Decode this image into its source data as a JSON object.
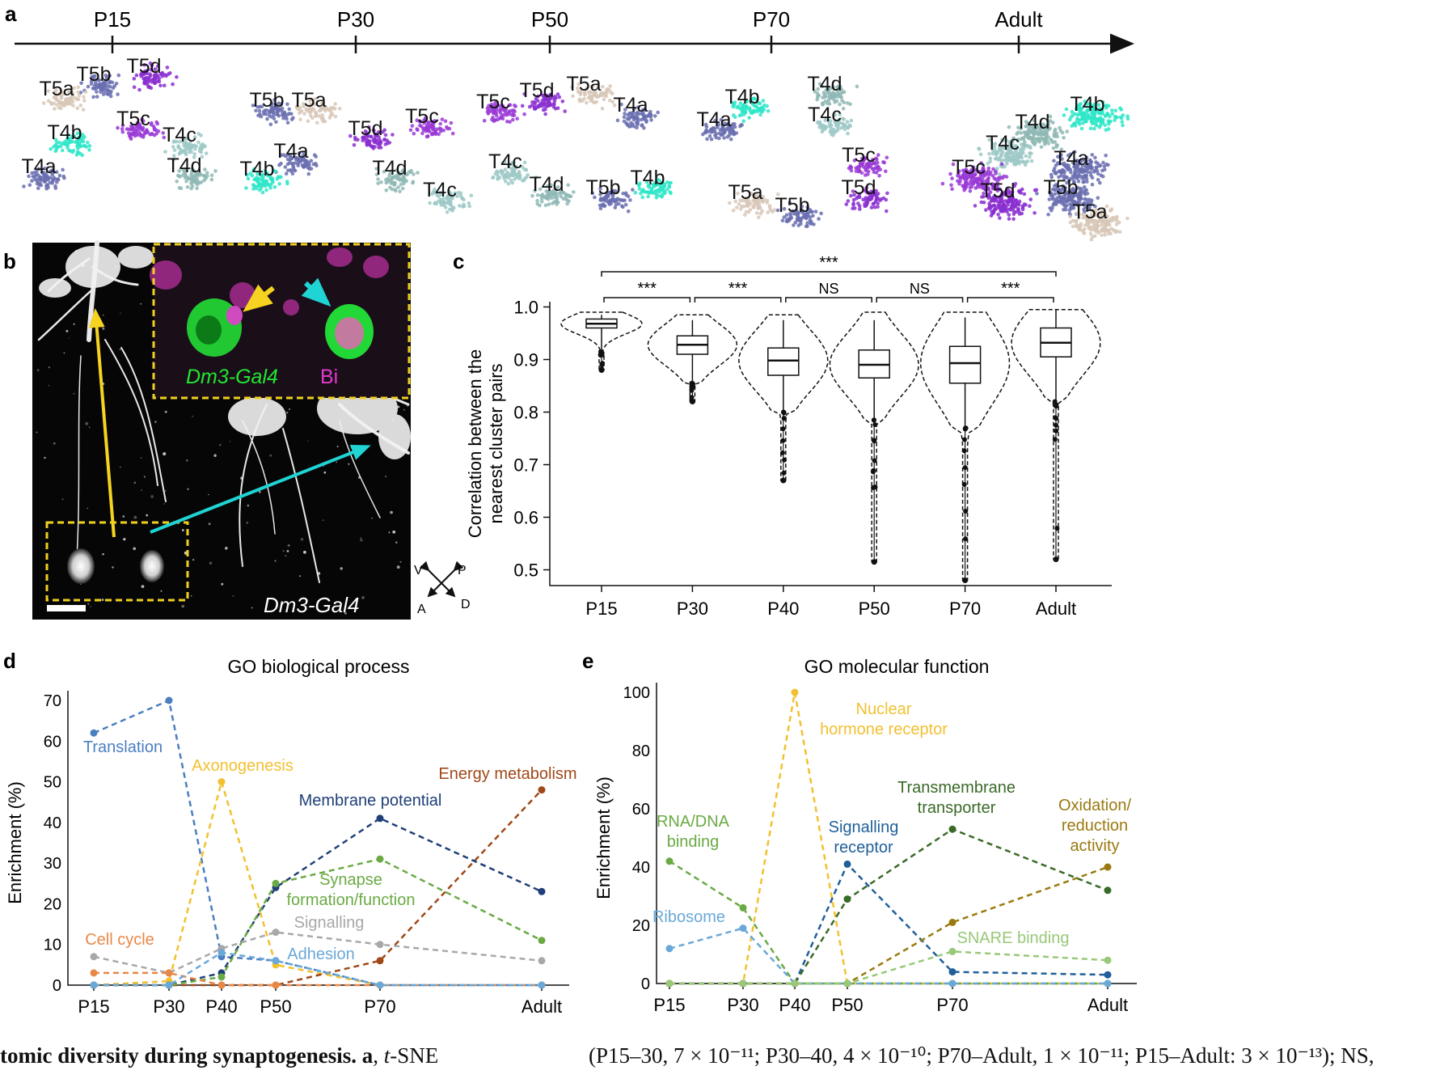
{
  "panel_labels": {
    "a": "a",
    "b": "b",
    "c": "c",
    "d": "d",
    "e": "e"
  },
  "timeline": {
    "labels": [
      "P15",
      "P30",
      "P50",
      "P70",
      "Adult"
    ]
  },
  "tsne_clusters": [
    {
      "stage": "P15",
      "labels": [
        "T5b",
        "T5d",
        "T5a",
        "T5c",
        "T4b",
        "T4c",
        "T4d",
        "T4a"
      ]
    },
    {
      "stage": "P30",
      "labels": [
        "T5b",
        "T5a",
        "T5d",
        "T5c",
        "T4a",
        "T4b",
        "T4d",
        "T4c"
      ]
    },
    {
      "stage": "P50",
      "labels": [
        "T5c",
        "T5d",
        "T5a",
        "T4a",
        "T4c",
        "T4d",
        "T5b",
        "T4b"
      ]
    },
    {
      "stage": "P70",
      "labels": [
        "T4b",
        "T4d",
        "T4a",
        "T4c",
        "T5c",
        "T5a",
        "T5d",
        "T5b"
      ]
    },
    {
      "stage": "Adult",
      "labels": [
        "T4b",
        "T4d",
        "T4c",
        "T4a",
        "T5c",
        "T5d",
        "T5b",
        "T5a"
      ]
    }
  ],
  "colors": {
    "T4a": "#6a6fb0",
    "T4b": "#2ee6c8",
    "T4c": "#9ec9c7",
    "T4d": "#8fb8b5",
    "T5a": "#d8c8b8",
    "T5b": "#6a6fb0",
    "T5c": "#9a3ad6",
    "T5d": "#8a2ed0",
    "gfp": "#22e632",
    "bi": "#e03ad0",
    "yellow_arrow": "#f5d320",
    "cyan_arrow": "#20d4d4",
    "box_border": "#f0d020"
  },
  "micrograph": {
    "inset_label_green": "Dm3-Gal4",
    "inset_label_magenta": "Bi",
    "main_label": "Dm3-Gal4",
    "compass": {
      "v": "V",
      "p": "P",
      "a": "A",
      "d": "D"
    }
  },
  "chart_data": [
    {
      "panel": "c",
      "type": "violin",
      "ylabel": "Correlation between the nearest cluster pairs",
      "categories": [
        "P15",
        "P30",
        "P40",
        "P50",
        "P70",
        "Adult"
      ],
      "ylim": [
        0.47,
        1.01
      ],
      "yticks": [
        "1.0",
        "0.9",
        "0.8",
        "0.7",
        "0.6",
        "0.5"
      ],
      "boxes": [
        {
          "name": "P15",
          "q1": 0.96,
          "median": 0.968,
          "q3": 0.977,
          "wlow": 0.915,
          "whigh": 0.985,
          "min": 0.88,
          "max": 0.99
        },
        {
          "name": "P30",
          "q1": 0.91,
          "median": 0.928,
          "q3": 0.945,
          "wlow": 0.855,
          "whigh": 0.975,
          "min": 0.82,
          "max": 0.985
        },
        {
          "name": "P40",
          "q1": 0.87,
          "median": 0.898,
          "q3": 0.922,
          "wlow": 0.8,
          "whigh": 0.975,
          "min": 0.67,
          "max": 0.985
        },
        {
          "name": "P50",
          "q1": 0.865,
          "median": 0.89,
          "q3": 0.918,
          "wlow": 0.785,
          "whigh": 0.975,
          "min": 0.515,
          "max": 0.99
        },
        {
          "name": "P70",
          "q1": 0.855,
          "median": 0.893,
          "q3": 0.925,
          "wlow": 0.77,
          "whigh": 0.98,
          "min": 0.48,
          "max": 0.99
        },
        {
          "name": "Adult",
          "q1": 0.905,
          "median": 0.932,
          "q3": 0.96,
          "wlow": 0.82,
          "whigh": 0.995,
          "min": 0.52,
          "max": 0.995
        }
      ],
      "significance": [
        {
          "from": "P15",
          "to": "P30",
          "label": "***"
        },
        {
          "from": "P30",
          "to": "P40",
          "label": "***"
        },
        {
          "from": "P40",
          "to": "P50",
          "label": "NS"
        },
        {
          "from": "P50",
          "to": "P70",
          "label": "NS"
        },
        {
          "from": "P70",
          "to": "Adult",
          "label": "***"
        },
        {
          "from": "P15",
          "to": "Adult",
          "label": "***"
        }
      ]
    },
    {
      "panel": "d",
      "type": "line",
      "title": "GO biological process",
      "ylabel": "Enrichment (%)",
      "x": [
        "P15",
        "P30",
        "P40",
        "P50",
        "P70",
        "Adult"
      ],
      "ylim": [
        0,
        70
      ],
      "yticks": [
        0,
        10,
        20,
        30,
        40,
        50,
        60,
        70
      ],
      "series": [
        {
          "name": "Translation",
          "color": "#4a7fc0",
          "values": [
            62,
            70,
            7,
            6,
            0,
            0
          ]
        },
        {
          "name": "Axonogenesis",
          "color": "#f2c030",
          "values": [
            0,
            1,
            50,
            5,
            0,
            0
          ]
        },
        {
          "name": "Energy metabolism",
          "color": "#a04818",
          "values": [
            0,
            0,
            0,
            0,
            6,
            48
          ]
        },
        {
          "name": "Membrane potential",
          "color": "#1f3f78",
          "values": [
            0,
            0,
            3,
            24,
            41,
            23
          ]
        },
        {
          "name": "Synapse formation/function",
          "color": "#6aaa44",
          "values": [
            0,
            0,
            2,
            25,
            31,
            11
          ]
        },
        {
          "name": "Signalling",
          "color": "#a8a8a8",
          "values": [
            7,
            3,
            9,
            13,
            10,
            6
          ]
        },
        {
          "name": "Cell cycle",
          "color": "#e88848",
          "values": [
            3,
            3,
            0,
            0,
            0,
            0
          ]
        },
        {
          "name": "Adhesion",
          "color": "#6aa8d8",
          "values": [
            0,
            0,
            8,
            6,
            0,
            0
          ]
        }
      ],
      "label_lines": [
        [
          "Translation"
        ],
        [
          "Axonogenesis"
        ],
        [
          "Energy metabolism"
        ],
        [
          "Membrane potential"
        ],
        [
          "Synapse",
          "formation/function"
        ],
        [
          "Signalling"
        ],
        [
          "Cell cycle"
        ],
        [
          "Adhesion"
        ]
      ]
    },
    {
      "panel": "e",
      "type": "line",
      "title": "GO molecular function",
      "ylabel": "Enrichment (%)",
      "x": [
        "P15",
        "P30",
        "P40",
        "P50",
        "P70",
        "Adult"
      ],
      "ylim": [
        0,
        100
      ],
      "yticks": [
        0,
        20,
        40,
        60,
        80,
        100
      ],
      "series": [
        {
          "name": "Nuclear hormone receptor",
          "color": "#f2c030",
          "values": [
            0,
            0,
            100,
            0,
            0,
            0
          ]
        },
        {
          "name": "RNA/DNA binding",
          "color": "#6aaa44",
          "values": [
            42,
            26,
            0,
            0,
            0,
            0
          ]
        },
        {
          "name": "Ribosome",
          "color": "#6aa8d8",
          "values": [
            12,
            19,
            0,
            0,
            0,
            0
          ]
        },
        {
          "name": "Signalling receptor",
          "color": "#1f5f9a",
          "values": [
            0,
            0,
            0,
            41,
            4,
            3
          ]
        },
        {
          "name": "Transmembrane transporter",
          "color": "#3a6a28",
          "values": [
            0,
            0,
            0,
            29,
            53,
            32
          ]
        },
        {
          "name": "Oxidation/ reduction activity",
          "color": "#9a7a10",
          "values": [
            0,
            0,
            0,
            0,
            21,
            40
          ]
        },
        {
          "name": "SNARE binding",
          "color": "#98c878",
          "values": [
            0,
            0,
            0,
            0,
            11,
            8
          ]
        }
      ],
      "label_lines": [
        [
          "Nuclear",
          "hormone receptor"
        ],
        [
          "RNA/DNA",
          "binding"
        ],
        [
          "Ribosome"
        ],
        [
          "Signalling",
          "receptor"
        ],
        [
          "Transmembrane",
          "transporter"
        ],
        [
          "Oxidation/",
          "reduction",
          "activity"
        ],
        [
          "SNARE binding"
        ]
      ]
    }
  ],
  "caption": {
    "left_bold": "tomic diversity during synaptogenesis. a",
    "left_rest": ", t-SNE",
    "right": "(P15–30, 7 × 10⁻¹¹; P30–40, 4 × 10⁻¹⁰; P70–Adult, 1 × 10⁻¹¹; P15–Adult: 3 × 10⁻¹³); NS,"
  }
}
